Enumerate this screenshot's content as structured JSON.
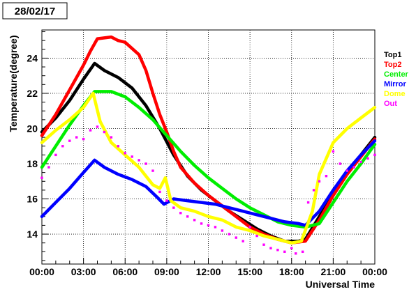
{
  "chart_data": {
    "type": "line",
    "title": "28/02/17",
    "xlabel": "Universal Time",
    "ylabel": "Temperature(degree)",
    "xlim": [
      0,
      24
    ],
    "ylim": [
      12.3,
      25.6
    ],
    "grid": true,
    "legend_position": "right",
    "x_ticks": [
      "00:00",
      "03:00",
      "06:00",
      "09:00",
      "12:00",
      "15:00",
      "18:00",
      "21:00",
      "00:00"
    ],
    "x_tick_values": [
      0,
      3,
      6,
      9,
      12,
      15,
      18,
      21,
      24
    ],
    "y_ticks": [
      14,
      16,
      18,
      20,
      22,
      24
    ],
    "series": [
      {
        "name": "Top1",
        "color": "#000000",
        "style": "line",
        "x": [
          0,
          1,
          2,
          3,
          3.8,
          4.5,
          5.5,
          6.5,
          7.5,
          8.5,
          9.5,
          10.5,
          11.5,
          12.5,
          13.5,
          14.5,
          15.5,
          16.5,
          17.5,
          18.5,
          19,
          20,
          21,
          22,
          23,
          24
        ],
        "y": [
          19.8,
          20.6,
          21.6,
          22.8,
          23.7,
          23.3,
          22.9,
          22.3,
          21.3,
          20.0,
          18.5,
          17.3,
          16.5,
          15.9,
          15.3,
          14.8,
          14.3,
          13.9,
          13.6,
          13.6,
          13.7,
          15.0,
          16.3,
          17.5,
          18.5,
          19.5
        ]
      },
      {
        "name": "Top2",
        "color": "#ff0000",
        "style": "line",
        "x": [
          0,
          1,
          2,
          3,
          3.5,
          4,
          5,
          5.5,
          6,
          7,
          7.5,
          8,
          8.5,
          9,
          9.5,
          10,
          11,
          12,
          13,
          14,
          15,
          16,
          17,
          18,
          19,
          20,
          21,
          22,
          23,
          24
        ],
        "y": [
          19.6,
          20.8,
          22.2,
          23.6,
          24.4,
          25.1,
          25.2,
          25.0,
          24.9,
          24.2,
          23.3,
          22.0,
          20.8,
          19.8,
          18.7,
          17.8,
          16.9,
          16.2,
          15.6,
          15.0,
          14.4,
          14.0,
          13.7,
          13.5,
          13.6,
          14.8,
          16.2,
          17.4,
          18.4,
          19.4
        ]
      },
      {
        "name": "Center",
        "color": "#00ee00",
        "style": "line",
        "x": [
          0,
          1,
          2,
          3,
          3.8,
          5,
          6,
          7,
          8,
          9,
          10,
          11,
          12,
          13,
          14,
          15,
          16,
          17,
          18,
          19,
          20,
          21,
          22,
          23,
          24
        ],
        "y": [
          17.8,
          19.0,
          20.2,
          21.3,
          22.1,
          22.1,
          21.8,
          21.2,
          20.5,
          19.6,
          18.7,
          17.9,
          17.2,
          16.6,
          16.0,
          15.5,
          15.1,
          14.7,
          14.5,
          14.4,
          14.6,
          15.8,
          17.0,
          18.0,
          19.1
        ]
      },
      {
        "name": "Mirror",
        "color": "#0000ff",
        "style": "line",
        "x": [
          0,
          1,
          2,
          3,
          3.8,
          4.5,
          5.5,
          6.5,
          7.5,
          8.3,
          8.8,
          9.5,
          10.5,
          11.5,
          12.5,
          13.5,
          14.5,
          15.5,
          16.5,
          17.5,
          18.5,
          19,
          20,
          21,
          22,
          23,
          24
        ],
        "y": [
          15.0,
          15.8,
          16.6,
          17.5,
          18.2,
          17.8,
          17.4,
          17.1,
          16.7,
          16.1,
          15.7,
          16.0,
          15.9,
          15.8,
          15.7,
          15.5,
          15.3,
          15.1,
          14.9,
          14.7,
          14.6,
          14.5,
          15.3,
          16.5,
          17.6,
          18.5,
          19.3
        ]
      },
      {
        "name": "Dome",
        "color": "#ffff00",
        "style": "line",
        "x": [
          0,
          1,
          2,
          3,
          3.7,
          4.2,
          5,
          6,
          7,
          8,
          8.5,
          8.9,
          9.3,
          10,
          11,
          12,
          13,
          14,
          15,
          16,
          17,
          18,
          18.7,
          19.5,
          20,
          21,
          22,
          23,
          24
        ],
        "y": [
          19.2,
          19.9,
          20.5,
          21.2,
          22.0,
          20.4,
          19.2,
          18.5,
          17.8,
          16.8,
          16.6,
          17.2,
          15.9,
          15.5,
          15.3,
          15.0,
          14.8,
          14.4,
          14.2,
          13.9,
          13.7,
          13.5,
          13.6,
          15.3,
          17.4,
          19.2,
          20.0,
          20.6,
          21.2
        ]
      },
      {
        "name": "Out",
        "color": "#ff00ff",
        "style": "scatter",
        "x": [
          0,
          0.5,
          1,
          1.5,
          2,
          2.5,
          3,
          3.5,
          4,
          4.5,
          5,
          5.5,
          6,
          6.5,
          7,
          7.5,
          8,
          8.5,
          9,
          9.5,
          10,
          10.5,
          11,
          11.5,
          12,
          12.5,
          13,
          13.5,
          14,
          14.5,
          15,
          15.5,
          16,
          16.5,
          17,
          17.5,
          18,
          18.3,
          18.8,
          19.2,
          19.6,
          20,
          20.5,
          21,
          21.5,
          22,
          22.5,
          23,
          23.5,
          24
        ],
        "y": [
          17.2,
          17.8,
          18.5,
          19.0,
          19.3,
          19.5,
          19.4,
          19.9,
          20.1,
          19.8,
          19.5,
          19.0,
          18.6,
          18.4,
          18.2,
          18.0,
          17.6,
          16.4,
          15.9,
          15.5,
          15.2,
          15.0,
          14.8,
          14.6,
          14.5,
          14.4,
          14.2,
          14.0,
          13.8,
          13.6,
          14.4,
          13.9,
          13.4,
          13.2,
          13.1,
          13.0,
          13.2,
          12.9,
          13.0,
          15.8,
          16.5,
          17.0,
          17.3,
          18.7,
          18.0,
          17.6,
          17.8,
          18.1,
          18.3,
          18.5
        ]
      }
    ]
  }
}
